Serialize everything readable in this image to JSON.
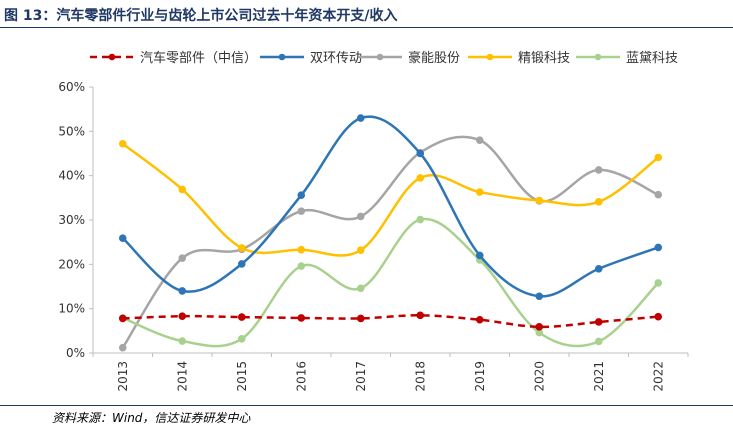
{
  "title": "图 13：汽车零部件行业与齿轮上市公司过去十年资本开支/收入",
  "source": "资料来源：Wind，信达证券研发中心",
  "chart_data": {
    "type": "line",
    "title": "",
    "xlabel": "",
    "ylabel": "",
    "ylim": [
      0,
      60
    ],
    "yticks": [
      0,
      10,
      20,
      30,
      40,
      50,
      60
    ],
    "ytick_labels": [
      "0%",
      "10%",
      "20%",
      "30%",
      "40%",
      "50%",
      "60%"
    ],
    "categories": [
      "2013",
      "2014",
      "2015",
      "2016",
      "2017",
      "2018",
      "2019",
      "2020",
      "2021",
      "2022"
    ],
    "grid": false,
    "legend_position": "top",
    "smooth": true,
    "series": [
      {
        "name": "汽车零部件（中信）",
        "color": "#c00000",
        "dashed": true,
        "values": [
          7.8,
          8.3,
          8.1,
          7.9,
          7.8,
          8.5,
          7.5,
          5.9,
          7.0,
          8.2
        ]
      },
      {
        "name": "双环传动",
        "color": "#2e75b6",
        "dashed": false,
        "values": [
          25.9,
          14.0,
          20.1,
          35.6,
          53.0,
          45.0,
          22.0,
          12.8,
          19.0,
          23.8
        ]
      },
      {
        "name": "豪能股份",
        "color": "#a5a5a5",
        "dashed": false,
        "values": [
          1.2,
          21.4,
          23.4,
          32.0,
          30.8,
          45.2,
          48.0,
          34.3,
          41.3,
          35.7
        ]
      },
      {
        "name": "精锻科技",
        "color": "#ffc000",
        "dashed": false,
        "values": [
          47.2,
          36.9,
          23.7,
          23.3,
          23.2,
          39.5,
          36.3,
          34.4,
          34.1,
          44.1
        ]
      },
      {
        "name": "蓝黛科技",
        "color": "#a9d18e",
        "dashed": false,
        "values": [
          7.9,
          2.7,
          3.2,
          19.6,
          14.6,
          30.1,
          21.0,
          4.6,
          2.6,
          15.8
        ]
      }
    ]
  }
}
